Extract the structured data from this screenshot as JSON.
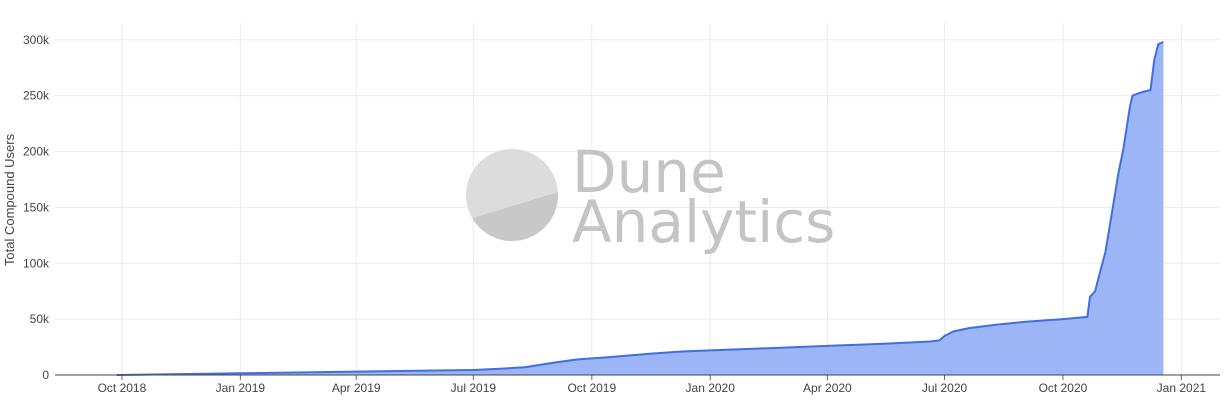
{
  "chart_data": {
    "type": "area",
    "title": "",
    "xlabel": "",
    "ylabel": "Total Compound Users",
    "y_ticks": [
      "0",
      "50k",
      "100k",
      "150k",
      "200k",
      "250k",
      "300k"
    ],
    "x_ticks": [
      "Oct 2018",
      "Jan 2019",
      "Apr 2019",
      "Jul 2019",
      "Oct 2019",
      "Jan 2020",
      "Apr 2020",
      "Jul 2020",
      "Oct 2020",
      "Jan 2021"
    ],
    "ylim": [
      0,
      315000
    ],
    "xlim": [
      "2018-08-10",
      "2021-01-31"
    ],
    "grid": true,
    "legend": "none",
    "colors": {
      "line": "#3f6fe0",
      "fill": "#9cb5f7"
    },
    "watermark": {
      "line1": "Dune",
      "line2": "Analytics"
    },
    "series": [
      {
        "values": [
          {
            "x": "2018-09-27",
            "y": 0
          },
          {
            "x": "2018-11-01",
            "y": 500
          },
          {
            "x": "2019-01-01",
            "y": 1500
          },
          {
            "x": "2019-04-01",
            "y": 3000
          },
          {
            "x": "2019-07-01",
            "y": 4500
          },
          {
            "x": "2019-07-20",
            "y": 5500
          },
          {
            "x": "2019-08-10",
            "y": 7000
          },
          {
            "x": "2019-09-01",
            "y": 11000
          },
          {
            "x": "2019-09-20",
            "y": 14000
          },
          {
            "x": "2019-10-15",
            "y": 16000
          },
          {
            "x": "2019-11-15",
            "y": 19000
          },
          {
            "x": "2019-12-10",
            "y": 21000
          },
          {
            "x": "2020-01-01",
            "y": 22000
          },
          {
            "x": "2020-02-15",
            "y": 24000
          },
          {
            "x": "2020-04-01",
            "y": 26000
          },
          {
            "x": "2020-05-15",
            "y": 28000
          },
          {
            "x": "2020-06-20",
            "y": 30000
          },
          {
            "x": "2020-06-27",
            "y": 31000
          },
          {
            "x": "2020-07-01",
            "y": 35000
          },
          {
            "x": "2020-07-08",
            "y": 39000
          },
          {
            "x": "2020-07-20",
            "y": 42000
          },
          {
            "x": "2020-08-10",
            "y": 45000
          },
          {
            "x": "2020-09-01",
            "y": 47500
          },
          {
            "x": "2020-10-01",
            "y": 50000
          },
          {
            "x": "2020-10-20",
            "y": 52000
          },
          {
            "x": "2020-10-22",
            "y": 70000
          },
          {
            "x": "2020-10-26",
            "y": 75000
          },
          {
            "x": "2020-10-30",
            "y": 93000
          },
          {
            "x": "2020-11-03",
            "y": 110000
          },
          {
            "x": "2020-11-08",
            "y": 145000
          },
          {
            "x": "2020-11-13",
            "y": 180000
          },
          {
            "x": "2020-11-17",
            "y": 203000
          },
          {
            "x": "2020-11-22",
            "y": 240000
          },
          {
            "x": "2020-11-24",
            "y": 250000
          },
          {
            "x": "2020-12-01",
            "y": 253000
          },
          {
            "x": "2020-12-08",
            "y": 255000
          },
          {
            "x": "2020-12-11",
            "y": 282000
          },
          {
            "x": "2020-12-14",
            "y": 296000
          },
          {
            "x": "2020-12-18",
            "y": 298000
          }
        ]
      }
    ]
  }
}
